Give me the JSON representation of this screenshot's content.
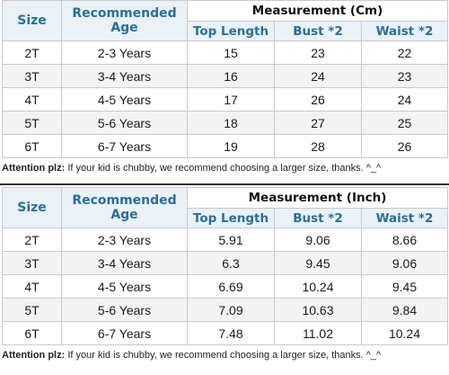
{
  "tables": [
    {
      "measurement_title": "Measurement (Cm)",
      "headers": {
        "size": "Size",
        "age": "Recommended Age",
        "top": "Top Length",
        "bust": "Bust *2",
        "waist": "Waist *2"
      },
      "rows": [
        [
          "2T",
          "2-3 Years",
          "15",
          "23",
          "22"
        ],
        [
          "3T",
          "3-4 Years",
          "16",
          "24",
          "23"
        ],
        [
          "4T",
          "4-5 Years",
          "17",
          "26",
          "24"
        ],
        [
          "5T",
          "5-6 Years",
          "18",
          "27",
          "25"
        ],
        [
          "6T",
          "6-7 Years",
          "19",
          "28",
          "26"
        ]
      ],
      "note_label": "Attention plz:",
      "note_text": " If your kid is chubby, we recommend choosing a larger size, thanks. ^_^"
    },
    {
      "measurement_title": "Measurement (Inch)",
      "headers": {
        "size": "Size",
        "age": "Recommended Age",
        "top": "Top Length",
        "bust": "Bust *2",
        "waist": "Waist *2"
      },
      "rows": [
        [
          "2T",
          "2-3 Years",
          "5.91",
          "9.06",
          "8.66"
        ],
        [
          "3T",
          "3-4 Years",
          "6.3",
          "9.45",
          "9.06"
        ],
        [
          "4T",
          "4-5 Years",
          "6.69",
          "10.24",
          "9.45"
        ],
        [
          "5T",
          "5-6 Years",
          "7.09",
          "10.63",
          "9.84"
        ],
        [
          "6T",
          "6-7 Years",
          "7.48",
          "11.02",
          "10.24"
        ]
      ],
      "note_label": "Attention plz:",
      "note_text": " If your kid is chubby, we recommend choosing a larger size, thanks. ^_^"
    }
  ]
}
